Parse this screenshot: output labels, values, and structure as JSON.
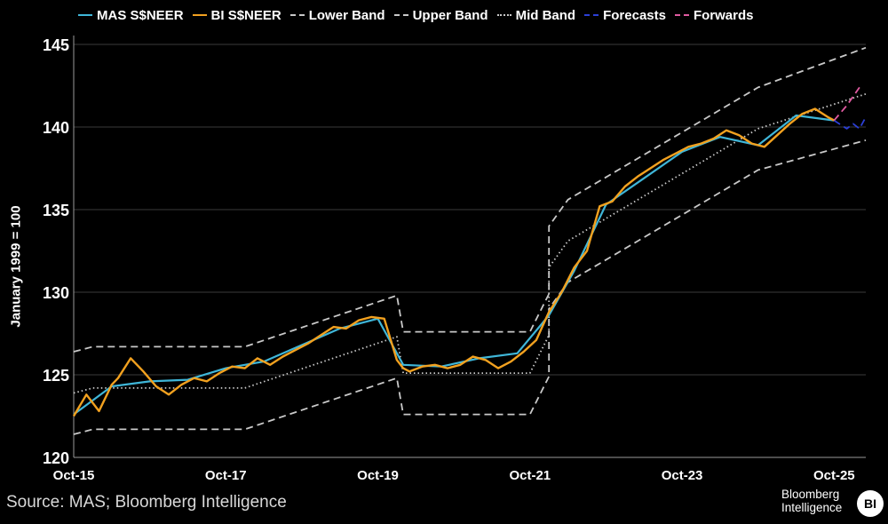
{
  "legend": [
    {
      "label": "MAS S$NEER",
      "color": "#3fb6d8",
      "style": "solid"
    },
    {
      "label": "BI S$NEER",
      "color": "#f2a11f",
      "style": "solid"
    },
    {
      "label": "Lower Band",
      "color": "#c9c9c9",
      "style": "dashed"
    },
    {
      "label": "Upper Band",
      "color": "#c9c9c9",
      "style": "dashed"
    },
    {
      "label": "Mid Band",
      "color": "#c9c9c9",
      "style": "dotted"
    },
    {
      "label": "Forecasts",
      "color": "#2c3fd6",
      "style": "dashed"
    },
    {
      "label": "Forwards",
      "color": "#e05aa0",
      "style": "dashed"
    }
  ],
  "source": "Source: MAS; Bloomberg Intelligence",
  "logo": {
    "line1": "Bloomberg",
    "line2": "Intelligence",
    "badge": "BI"
  },
  "chart_data": {
    "type": "line",
    "title": "",
    "ylabel": "January 1999 = 100",
    "xlabel": "",
    "xlim": [
      "2015-10",
      "2026-03"
    ],
    "ylim": [
      120,
      145
    ],
    "yticks": [
      120,
      125,
      130,
      135,
      140,
      145
    ],
    "xticks": [
      "Oct-15",
      "Oct-17",
      "Oct-19",
      "Oct-21",
      "Oct-23",
      "Oct-25"
    ],
    "grid": "horizontal",
    "legend_position": "top",
    "series": [
      {
        "name": "BI S$NEER",
        "color": "#f2a11f",
        "style": "solid",
        "x": [
          "2015-10",
          "2015-12",
          "2016-02",
          "2016-04",
          "2016-05",
          "2016-07",
          "2016-09",
          "2016-11",
          "2017-01",
          "2017-03",
          "2017-05",
          "2017-07",
          "2017-09",
          "2017-11",
          "2018-01",
          "2018-03",
          "2018-05",
          "2018-07",
          "2018-09",
          "2018-11",
          "2019-01",
          "2019-03",
          "2019-05",
          "2019-07",
          "2019-09",
          "2019-11",
          "2020-01",
          "2020-02",
          "2020-03",
          "2020-05",
          "2020-07",
          "2020-09",
          "2020-11",
          "2021-01",
          "2021-03",
          "2021-05",
          "2021-07",
          "2021-09",
          "2021-11",
          "2022-01",
          "2022-03",
          "2022-05",
          "2022-07",
          "2022-09",
          "2022-11",
          "2023-01",
          "2023-03",
          "2023-05",
          "2023-07",
          "2023-09",
          "2023-11",
          "2024-01",
          "2024-03",
          "2024-05",
          "2024-07",
          "2024-09",
          "2024-11",
          "2025-01",
          "2025-03",
          "2025-05",
          "2025-07",
          "2025-09",
          "2025-10"
        ],
        "values": [
          122.5,
          123.8,
          122.8,
          124.4,
          124.8,
          126.0,
          125.2,
          124.3,
          123.8,
          124.4,
          124.8,
          124.6,
          125.1,
          125.5,
          125.4,
          126.0,
          125.6,
          126.1,
          126.5,
          126.9,
          127.4,
          127.9,
          127.8,
          128.3,
          128.5,
          128.4,
          125.9,
          125.4,
          125.2,
          125.5,
          125.6,
          125.4,
          125.6,
          126.1,
          125.9,
          125.4,
          125.8,
          126.4,
          127.1,
          128.8,
          130.0,
          131.5,
          132.5,
          135.2,
          135.5,
          136.4,
          137.0,
          137.5,
          138.0,
          138.4,
          138.8,
          139.0,
          139.3,
          139.8,
          139.5,
          139.0,
          138.8,
          139.5,
          140.2,
          140.8,
          141.1,
          140.6,
          140.4
        ]
      },
      {
        "name": "MAS S$NEER",
        "color": "#3fb6d8",
        "style": "solid",
        "x": [
          "2015-10",
          "2016-04",
          "2016-10",
          "2017-04",
          "2017-10",
          "2018-04",
          "2018-10",
          "2019-04",
          "2019-10",
          "2020-02",
          "2020-08",
          "2021-02",
          "2021-08",
          "2022-01",
          "2022-05",
          "2022-10",
          "2023-04",
          "2023-10",
          "2024-04",
          "2024-10",
          "2025-04",
          "2025-10"
        ],
        "values": [
          122.6,
          124.3,
          124.6,
          124.7,
          125.4,
          125.8,
          126.8,
          127.8,
          128.4,
          125.6,
          125.5,
          126.0,
          126.3,
          128.6,
          131.3,
          135.3,
          136.9,
          138.5,
          139.4,
          138.9,
          140.7,
          140.4
        ]
      },
      {
        "name": "Upper Band",
        "color": "#c9c9c9",
        "style": "dashed",
        "x": [
          "2015-10",
          "2016-01",
          "2018-01",
          "2020-01",
          "2020-02",
          "2021-10",
          "2022-01",
          "2022-01",
          "2022-04",
          "2022-04",
          "2024-10",
          "2026-03"
        ],
        "values": [
          126.4,
          126.7,
          126.7,
          129.8,
          127.6,
          127.6,
          129.9,
          134.0,
          135.6,
          135.6,
          142.4,
          144.8
        ]
      },
      {
        "name": "Mid Band",
        "color": "#c9c9c9",
        "style": "dotted",
        "x": [
          "2015-10",
          "2016-01",
          "2018-01",
          "2020-01",
          "2020-02",
          "2021-10",
          "2022-01",
          "2022-01",
          "2022-04",
          "2022-04",
          "2024-10",
          "2026-03"
        ],
        "values": [
          123.9,
          124.2,
          124.2,
          127.3,
          125.1,
          125.1,
          127.4,
          131.5,
          133.1,
          133.1,
          139.9,
          142.0
        ]
      },
      {
        "name": "Lower Band",
        "color": "#c9c9c9",
        "style": "dashed",
        "x": [
          "2015-10",
          "2016-01",
          "2018-01",
          "2020-01",
          "2020-02",
          "2021-10",
          "2022-01",
          "2022-01",
          "2022-04",
          "2022-04",
          "2024-10",
          "2026-03"
        ],
        "values": [
          121.4,
          121.7,
          121.7,
          124.8,
          122.6,
          122.6,
          124.9,
          129.0,
          130.6,
          130.6,
          137.4,
          139.2
        ]
      },
      {
        "name": "Forecasts",
        "color": "#2c3fd6",
        "style": "dashed",
        "x": [
          "2025-10",
          "2025-12",
          "2026-01",
          "2026-02",
          "2026-03"
        ],
        "values": [
          140.4,
          139.9,
          140.2,
          139.9,
          140.6
        ]
      },
      {
        "name": "Forwards",
        "color": "#e05aa0",
        "style": "dashed",
        "x": [
          "2025-10",
          "2025-12",
          "2026-02"
        ],
        "values": [
          140.4,
          141.3,
          142.4
        ]
      }
    ]
  }
}
